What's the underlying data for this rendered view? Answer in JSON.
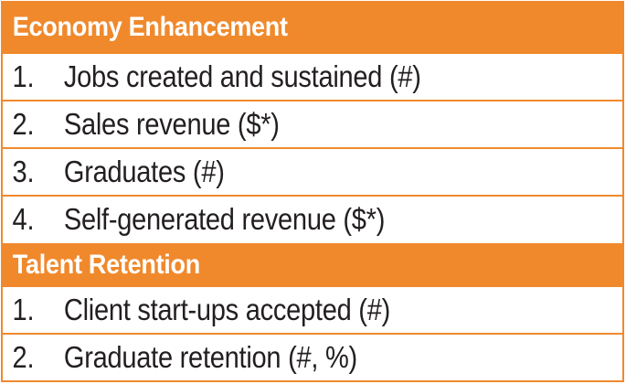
{
  "sections": [
    {
      "title": "Economy Enhancement",
      "items": [
        {
          "num": "1.",
          "text": "Jobs created and sustained (#)"
        },
        {
          "num": "2.",
          "text": "Sales revenue ($*)"
        },
        {
          "num": "3.",
          "text": "Graduates (#)"
        },
        {
          "num": "4.",
          "text": "Self-generated revenue ($*)"
        }
      ]
    },
    {
      "title": "Talent Retention",
      "items": [
        {
          "num": "1.",
          "text": "Client start-ups accepted (#)"
        },
        {
          "num": "2.",
          "text": "Graduate retention (#, %)"
        }
      ]
    }
  ],
  "colors": {
    "header_bg": "#f0892c",
    "header_text": "#ffffff",
    "row_bg": "#ffffff",
    "row_text": "#231f20"
  }
}
